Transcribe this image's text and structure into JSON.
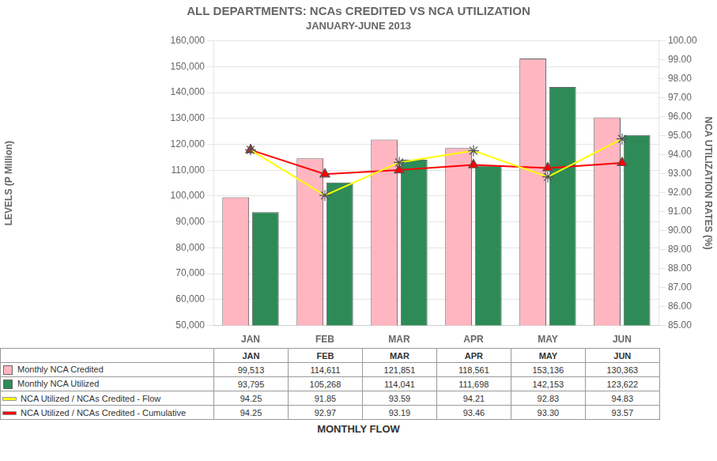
{
  "chart_data": {
    "type": "bar",
    "title": "ALL DEPARTMENTS: NCAs CREDITED VS NCA UTILIZATION",
    "subtitle": "JANUARY-JUNE 2013",
    "xlabel": "MONTHLY FLOW",
    "ylabel": "LEVELS (P Million)",
    "y2label": "NCA UTILIZATION RATES (%)",
    "categories": [
      "JAN",
      "FEB",
      "MAR",
      "APR",
      "MAY",
      "JUN"
    ],
    "series": [
      {
        "name": "Monthly NCA Credited",
        "type": "bar",
        "color": "#FFB6C1",
        "values": [
          99513,
          114611,
          121851,
          118561,
          153136,
          130363
        ],
        "value_labels": [
          "99,513",
          "114,611",
          "121,851",
          "118,561",
          "153,136",
          "130,363"
        ]
      },
      {
        "name": "Monthly NCA Utilized",
        "type": "bar",
        "color": "#2E8B57",
        "values": [
          93795,
          105268,
          114041,
          111698,
          142153,
          123622
        ],
        "value_labels": [
          "93,795",
          "105,268",
          "114,041",
          "111,698",
          "142,153",
          "123,622"
        ]
      },
      {
        "name": "NCA Utilized / NCAs Credited - Flow",
        "type": "line",
        "axis": "y2",
        "color": "#FFFF00",
        "marker": "star",
        "values": [
          94.25,
          91.85,
          93.59,
          94.21,
          92.83,
          94.83
        ],
        "value_labels": [
          "94.25",
          "91.85",
          "93.59",
          "94.21",
          "92.83",
          "94.83"
        ]
      },
      {
        "name": "NCA Utilized / NCAs Credited - Cumulative",
        "type": "line",
        "axis": "y2",
        "color": "#FF0000",
        "marker": "triangle",
        "values": [
          94.25,
          92.97,
          93.19,
          93.46,
          93.3,
          93.57
        ],
        "value_labels": [
          "94.25",
          "92.97",
          "93.19",
          "93.46",
          "93.30",
          "93.57"
        ]
      }
    ],
    "ylim": [
      50000,
      160000
    ],
    "yticks": [
      {
        "value": 50000,
        "label": "50,000"
      },
      {
        "value": 60000,
        "label": "60,000"
      },
      {
        "value": 70000,
        "label": "70,000"
      },
      {
        "value": 80000,
        "label": "80,000"
      },
      {
        "value": 90000,
        "label": "90,000"
      },
      {
        "value": 100000,
        "label": "100,000"
      },
      {
        "value": 110000,
        "label": "110,000"
      },
      {
        "value": 120000,
        "label": "120,000"
      },
      {
        "value": 130000,
        "label": "130,000"
      },
      {
        "value": 140000,
        "label": "140,000"
      },
      {
        "value": 150000,
        "label": "150,000"
      },
      {
        "value": 160000,
        "label": "160,000"
      }
    ],
    "y2lim": [
      85.0,
      100.0
    ],
    "y2ticks": [
      {
        "value": 85,
        "label": "85.00"
      },
      {
        "value": 86,
        "label": "86.00"
      },
      {
        "value": 87,
        "label": "87.00"
      },
      {
        "value": 88,
        "label": "88.00"
      },
      {
        "value": 89,
        "label": "89.00"
      },
      {
        "value": 90,
        "label": "90.00"
      },
      {
        "value": 91,
        "label": "91.00"
      },
      {
        "value": 92,
        "label": "92.00"
      },
      {
        "value": 93,
        "label": "93.00"
      },
      {
        "value": 94,
        "label": "94.00"
      },
      {
        "value": 95,
        "label": "95.00"
      },
      {
        "value": 96,
        "label": "96.00"
      },
      {
        "value": 97,
        "label": "97.00"
      },
      {
        "value": 98,
        "label": "98.00"
      },
      {
        "value": 99,
        "label": "99.00"
      },
      {
        "value": 100,
        "label": "100.00"
      }
    ],
    "grid": true,
    "legend": "bottom"
  }
}
